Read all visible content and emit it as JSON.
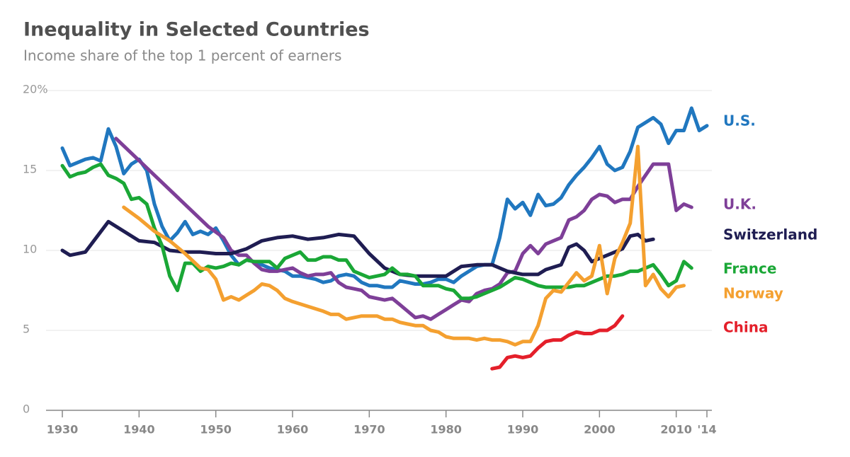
{
  "chart_data": {
    "type": "line",
    "title": "Inequality in Selected Countries",
    "subtitle": "Income share of the top 1 percent of earners",
    "xlim": [
      1930,
      2014
    ],
    "xticks": [
      1930,
      1940,
      1950,
      1960,
      1970,
      1980,
      1990,
      2000,
      2010,
      {
        "value": 2014,
        "label": "'14"
      }
    ],
    "ylim": [
      0,
      20
    ],
    "yticks": [
      0,
      5,
      10,
      15,
      {
        "value": 20,
        "label": "20%"
      }
    ],
    "grid": true,
    "series": [
      {
        "name": "U.S.",
        "color": "#2077bf",
        "x": [
          1930,
          1931,
          1932,
          1933,
          1934,
          1935,
          1936,
          1937,
          1938,
          1939,
          1940,
          1941,
          1942,
          1943,
          1944,
          1945,
          1946,
          1947,
          1948,
          1949,
          1950,
          1951,
          1952,
          1953,
          1954,
          1955,
          1956,
          1957,
          1958,
          1959,
          1960,
          1961,
          1962,
          1963,
          1964,
          1965,
          1966,
          1967,
          1968,
          1969,
          1970,
          1971,
          1972,
          1973,
          1974,
          1975,
          1976,
          1977,
          1978,
          1979,
          1980,
          1981,
          1982,
          1983,
          1984,
          1985,
          1986,
          1987,
          1988,
          1989,
          1990,
          1991,
          1992,
          1993,
          1994,
          1995,
          1996,
          1997,
          1998,
          1999,
          2000,
          2001,
          2002,
          2003,
          2004,
          2005,
          2006,
          2007,
          2008,
          2009,
          2010,
          2011,
          2012,
          2013,
          2014
        ],
        "values": [
          16.4,
          15.3,
          15.5,
          15.7,
          15.8,
          15.6,
          17.6,
          16.5,
          14.8,
          15.4,
          15.7,
          15.0,
          12.9,
          11.5,
          10.6,
          11.1,
          11.8,
          11.0,
          11.2,
          11.0,
          11.4,
          10.6,
          9.7,
          9.1,
          9.4,
          9.3,
          9.1,
          8.9,
          8.8,
          8.7,
          8.4,
          8.4,
          8.3,
          8.2,
          8.0,
          8.1,
          8.4,
          8.5,
          8.4,
          8.0,
          7.8,
          7.8,
          7.7,
          7.7,
          8.1,
          8.0,
          7.9,
          7.9,
          8.0,
          8.2,
          8.2,
          8.0,
          8.4,
          8.7,
          9.0,
          9.1,
          9.1,
          10.8,
          13.2,
          12.6,
          13.0,
          12.2,
          13.5,
          12.8,
          12.9,
          13.3,
          14.1,
          14.7,
          15.2,
          15.8,
          16.5,
          15.4,
          15.0,
          15.2,
          16.2,
          17.7,
          18.0,
          18.3,
          17.9,
          16.7,
          17.5,
          17.5,
          18.9,
          17.5,
          17.8
        ]
      },
      {
        "name": "U.K.",
        "color": "#7e3f98",
        "x": [
          1937,
          1949,
          1951,
          1952,
          1953,
          1954,
          1955,
          1956,
          1957,
          1958,
          1959,
          1960,
          1961,
          1962,
          1963,
          1964,
          1965,
          1966,
          1967,
          1968,
          1969,
          1970,
          1971,
          1972,
          1973,
          1974,
          1975,
          1976,
          1977,
          1978,
          1979,
          1980,
          1981,
          1982,
          1983,
          1984,
          1985,
          1986,
          1987,
          1988,
          1989,
          1990,
          1991,
          1992,
          1993,
          1994,
          1995,
          1996,
          1997,
          1998,
          1999,
          2000,
          2001,
          2002,
          2003,
          2004,
          2005,
          2006,
          2007,
          2008,
          2009,
          2010,
          2011,
          2012
        ],
        "values": [
          17.0,
          11.5,
          10.8,
          10.0,
          9.7,
          9.7,
          9.2,
          8.8,
          8.7,
          8.7,
          8.8,
          8.9,
          8.6,
          8.4,
          8.5,
          8.5,
          8.6,
          8.0,
          7.7,
          7.6,
          7.5,
          7.1,
          7.0,
          6.9,
          7.0,
          6.6,
          6.2,
          5.8,
          5.9,
          5.7,
          6.0,
          6.3,
          6.6,
          6.9,
          6.8,
          7.3,
          7.5,
          7.6,
          7.9,
          8.6,
          8.7,
          9.8,
          10.3,
          9.8,
          10.4,
          10.6,
          10.8,
          11.9,
          12.1,
          12.5,
          13.2,
          13.5,
          13.4,
          13.0,
          13.2,
          13.2,
          14.0,
          14.7,
          15.4,
          15.4,
          15.4,
          12.5,
          12.9,
          12.7
        ]
      },
      {
        "name": "Switzerland",
        "color": "#1f1d52",
        "x": [
          1930,
          1931,
          1933,
          1936,
          1940,
          1942,
          1944,
          1946,
          1948,
          1950,
          1952,
          1954,
          1956,
          1958,
          1960,
          1962,
          1964,
          1966,
          1968,
          1970,
          1972,
          1974,
          1976,
          1978,
          1980,
          1982,
          1984,
          1986,
          1988,
          1990,
          1992,
          1993,
          1995,
          1996,
          1997,
          1998,
          1999,
          2000,
          2002,
          2003,
          2004,
          2005,
          2006,
          2007
        ],
        "values": [
          10.0,
          9.7,
          9.9,
          11.8,
          10.6,
          10.5,
          10.0,
          9.9,
          9.9,
          9.8,
          9.8,
          10.1,
          10.6,
          10.8,
          10.9,
          10.7,
          10.8,
          11.0,
          10.9,
          9.8,
          8.9,
          8.5,
          8.4,
          8.4,
          8.4,
          9.0,
          9.1,
          9.1,
          8.7,
          8.5,
          8.5,
          8.8,
          9.1,
          10.2,
          10.4,
          10.0,
          9.3,
          9.5,
          9.9,
          10.1,
          10.9,
          11.0,
          10.6,
          10.7
        ]
      },
      {
        "name": "France",
        "color": "#1aa736",
        "x": [
          1930,
          1931,
          1932,
          1933,
          1934,
          1935,
          1936,
          1937,
          1938,
          1939,
          1940,
          1941,
          1942,
          1943,
          1944,
          1945,
          1946,
          1947,
          1948,
          1949,
          1950,
          1951,
          1952,
          1953,
          1954,
          1955,
          1956,
          1957,
          1958,
          1959,
          1960,
          1961,
          1962,
          1963,
          1964,
          1965,
          1966,
          1967,
          1968,
          1969,
          1970,
          1971,
          1972,
          1973,
          1974,
          1975,
          1976,
          1977,
          1978,
          1979,
          1980,
          1981,
          1982,
          1983,
          1984,
          1985,
          1986,
          1987,
          1988,
          1989,
          1990,
          1991,
          1992,
          1993,
          1994,
          1995,
          1996,
          1997,
          1998,
          1999,
          2000,
          2001,
          2002,
          2003,
          2004,
          2005,
          2006,
          2007,
          2008,
          2009,
          2010,
          2011,
          2012
        ],
        "values": [
          15.3,
          14.6,
          14.8,
          14.9,
          15.2,
          15.4,
          14.7,
          14.5,
          14.2,
          13.2,
          13.3,
          12.9,
          11.4,
          10.3,
          8.4,
          7.5,
          9.2,
          9.2,
          8.7,
          9.0,
          8.9,
          9.0,
          9.2,
          9.1,
          9.4,
          9.3,
          9.3,
          9.3,
          8.9,
          9.5,
          9.7,
          9.9,
          9.4,
          9.4,
          9.6,
          9.6,
          9.4,
          9.4,
          8.7,
          8.5,
          8.3,
          8.4,
          8.5,
          8.9,
          8.5,
          8.5,
          8.4,
          7.8,
          7.8,
          7.8,
          7.6,
          7.5,
          7.0,
          7.0,
          7.1,
          7.3,
          7.5,
          7.7,
          8.0,
          8.3,
          8.2,
          8.0,
          7.8,
          7.7,
          7.7,
          7.7,
          7.7,
          7.8,
          7.8,
          8.0,
          8.2,
          8.4,
          8.4,
          8.5,
          8.7,
          8.7,
          8.9,
          9.1,
          8.5,
          7.8,
          8.1,
          9.3,
          8.9
        ]
      },
      {
        "name": "Norway",
        "color": "#f4a030",
        "x": [
          1938,
          1940,
          1942,
          1944,
          1946,
          1948,
          1949,
          1950,
          1951,
          1952,
          1953,
          1954,
          1955,
          1956,
          1957,
          1958,
          1959,
          1960,
          1962,
          1964,
          1965,
          1966,
          1967,
          1968,
          1969,
          1970,
          1971,
          1972,
          1973,
          1974,
          1975,
          1976,
          1977,
          1978,
          1979,
          1980,
          1981,
          1982,
          1983,
          1984,
          1985,
          1986,
          1987,
          1988,
          1989,
          1990,
          1991,
          1992,
          1993,
          1994,
          1995,
          1996,
          1997,
          1998,
          1999,
          2000,
          2001,
          2002,
          2003,
          2004,
          2005,
          2006,
          2007,
          2008,
          2009,
          2010,
          2011
        ],
        "values": [
          12.7,
          12.0,
          11.2,
          10.6,
          9.8,
          8.9,
          8.8,
          8.2,
          6.9,
          7.1,
          6.9,
          7.2,
          7.5,
          7.9,
          7.8,
          7.5,
          7.0,
          6.8,
          6.5,
          6.2,
          6.0,
          6.0,
          5.7,
          5.8,
          5.9,
          5.9,
          5.9,
          5.7,
          5.7,
          5.5,
          5.4,
          5.3,
          5.3,
          5.0,
          4.9,
          4.6,
          4.5,
          4.5,
          4.5,
          4.4,
          4.5,
          4.4,
          4.4,
          4.3,
          4.1,
          4.3,
          4.3,
          5.3,
          7.0,
          7.5,
          7.4,
          8.0,
          8.6,
          8.1,
          8.4,
          10.3,
          7.3,
          9.5,
          10.5,
          11.7,
          16.5,
          7.8,
          8.5,
          7.6,
          7.1,
          7.7,
          7.8
        ]
      },
      {
        "name": "China",
        "color": "#e41f2a",
        "x": [
          1986,
          1987,
          1988,
          1989,
          1990,
          1991,
          1992,
          1993,
          1994,
          1995,
          1996,
          1997,
          1998,
          1999,
          2000,
          2001,
          2002,
          2003
        ],
        "values": [
          2.6,
          2.7,
          3.3,
          3.4,
          3.3,
          3.4,
          3.9,
          4.3,
          4.4,
          4.4,
          4.7,
          4.9,
          4.8,
          4.8,
          5.0,
          5.0,
          5.3,
          5.9
        ]
      }
    ]
  }
}
